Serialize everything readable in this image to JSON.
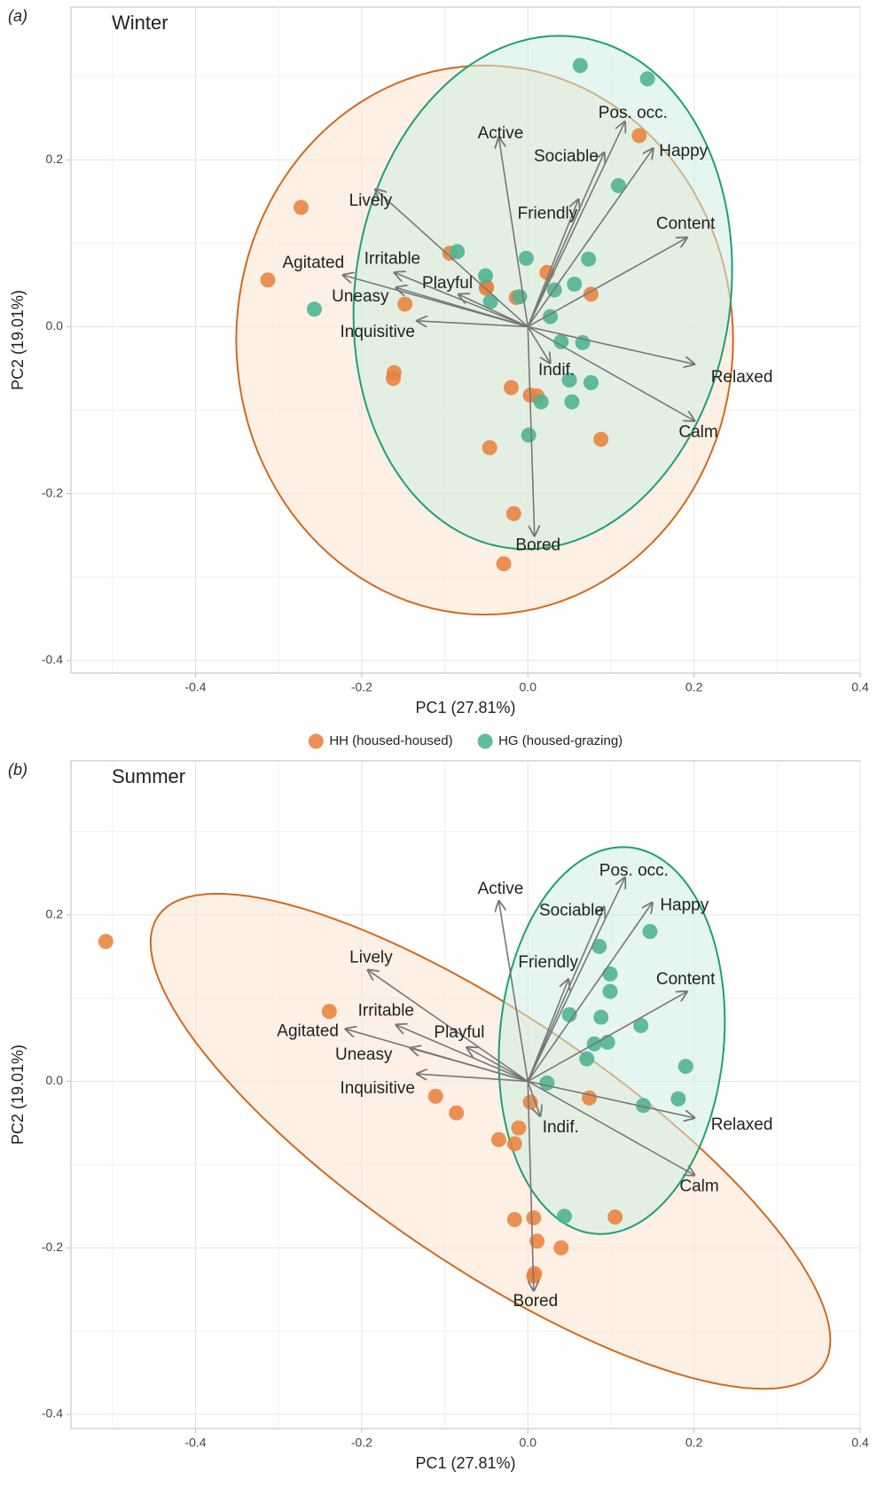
{
  "chart_data": [
    {
      "type": "scatter",
      "panel_label": "(a)",
      "title": "Winter",
      "xlabel": "PC1 (27.81%)",
      "ylabel": "PC2 (19.01%)",
      "xlim": [
        -0.55,
        0.4
      ],
      "ylim": [
        -0.415,
        0.383
      ],
      "xticks": [
        -0.4,
        -0.2,
        {
          "value": 0,
          "label": "0.0"
        },
        0.2,
        0.4
      ],
      "yticks": [
        -0.4,
        -0.2,
        {
          "value": 0,
          "label": "0.0"
        },
        0.2
      ],
      "grid": true,
      "legend": "bottom",
      "series": [
        {
          "name": "HH (housed-housed)",
          "color": "#e8823e",
          "x": [
            -0.273,
            -0.313,
            -0.148,
            -0.161,
            -0.162,
            -0.094,
            -0.05,
            -0.05,
            -0.014,
            0.023,
            0.076,
            0.134,
            -0.02,
            0.003,
            0.011,
            -0.046,
            0.088,
            -0.017,
            -0.029
          ],
          "values": [
            0.143,
            0.056,
            0.027,
            -0.055,
            -0.062,
            0.088,
            0.048,
            0.046,
            0.035,
            0.065,
            0.039,
            0.229,
            -0.073,
            -0.082,
            -0.083,
            -0.145,
            -0.135,
            -0.224,
            -0.284
          ],
          "ellipse": {
            "cx": -0.052,
            "cy": -0.016,
            "rx": 0.299,
            "ry": 0.329,
            "angle": 0,
            "stroke": "#d06a1e",
            "fill": "#fde4d0"
          }
        },
        {
          "name": "HG (housed-grazing)",
          "color": "#4cb391",
          "x": [
            0.063,
            0.144,
            0.109,
            -0.085,
            -0.051,
            -0.045,
            -0.01,
            -0.002,
            0.032,
            0.056,
            0.073,
            0.027,
            0.04,
            0.066,
            0.05,
            0.076,
            0.053,
            0.016,
            0.001,
            -0.257
          ],
          "values": [
            0.313,
            0.297,
            0.169,
            0.09,
            0.061,
            0.03,
            0.036,
            0.082,
            0.044,
            0.051,
            0.081,
            0.012,
            -0.018,
            -0.019,
            -0.064,
            -0.067,
            -0.09,
            -0.09,
            -0.13,
            0.021
          ],
          "ellipse": {
            "cx": 0.018,
            "cy": 0.041,
            "rx": 0.226,
            "ry": 0.309,
            "angle": -8,
            "stroke": "#1f9e78",
            "fill": "#cdeee2"
          }
        }
      ],
      "vectors": [
        {
          "name": "Active",
          "x": -0.035,
          "y": 0.227
        },
        {
          "name": "Pos. occ.",
          "x": 0.117,
          "y": 0.246
        },
        {
          "name": "Happy",
          "x": 0.151,
          "y": 0.214
        },
        {
          "name": "Sociable",
          "x": 0.092,
          "y": 0.209
        },
        {
          "name": "Friendly",
          "x": 0.061,
          "y": 0.153
        },
        {
          "name": "Content",
          "x": 0.192,
          "y": 0.107
        },
        {
          "name": "Lively",
          "x": -0.184,
          "y": 0.165
        },
        {
          "name": "Agitated",
          "x": -0.223,
          "y": 0.062
        },
        {
          "name": "Irritable",
          "x": -0.161,
          "y": 0.065
        },
        {
          "name": "Playful",
          "x": -0.084,
          "y": 0.039
        },
        {
          "name": "Uneasy",
          "x": -0.159,
          "y": 0.047
        },
        {
          "name": "Inquisitive",
          "x": -0.134,
          "y": 0.007
        },
        {
          "name": "Indif.",
          "x": 0.027,
          "y": -0.044
        },
        {
          "name": "Relaxed",
          "x": 0.201,
          "y": -0.045
        },
        {
          "name": "Calm",
          "x": 0.201,
          "y": -0.113
        },
        {
          "name": "Bored",
          "x": 0.008,
          "y": -0.251
        }
      ]
    },
    {
      "type": "scatter",
      "panel_label": "(b)",
      "title": "Summer",
      "xlabel": "PC1 (27.81%)",
      "ylabel": "PC2 (19.01%)",
      "xlim": [
        -0.55,
        0.4
      ],
      "ylim": [
        -0.417,
        0.385
      ],
      "xticks": [
        -0.4,
        -0.2,
        {
          "value": 0,
          "label": "0.0"
        },
        0.2,
        0.4
      ],
      "yticks": [
        -0.4,
        -0.2,
        {
          "value": 0,
          "label": "0.0"
        },
        0.2
      ],
      "grid": true,
      "series": [
        {
          "color": "#e8823e",
          "x": [
            -0.508,
            -0.239,
            -0.111,
            -0.086,
            -0.035,
            -0.016,
            -0.011,
            0.003,
            0.074,
            -0.016,
            0.007,
            0.011,
            0.008,
            0.007,
            0.04,
            0.105
          ],
          "values": [
            0.168,
            0.084,
            -0.018,
            -0.038,
            -0.07,
            -0.075,
            -0.056,
            -0.025,
            -0.02,
            -0.166,
            -0.164,
            -0.192,
            -0.231,
            -0.234,
            -0.2,
            -0.163
          ],
          "ellipse": {
            "cx": -0.045,
            "cy": -0.072,
            "rx": 0.483,
            "ry": 0.15,
            "angle": -34,
            "stroke": "#d06a1e",
            "fill": "#fde4d0"
          }
        },
        {
          "color": "#4cb391",
          "x": [
            0.147,
            0.086,
            0.099,
            0.099,
            0.05,
            0.088,
            0.136,
            0.08,
            0.096,
            0.071,
            0.023,
            0.19,
            0.181,
            0.139,
            0.044
          ],
          "values": [
            0.18,
            0.162,
            0.129,
            0.108,
            0.08,
            0.077,
            0.067,
            0.045,
            0.047,
            0.027,
            -0.002,
            0.018,
            -0.021,
            -0.029,
            -0.162
          ],
          "ellipse": {
            "cx": 0.101,
            "cy": 0.049,
            "rx": 0.135,
            "ry": 0.233,
            "angle": -5,
            "stroke": "#1f9e78",
            "fill": "#cdeee2"
          }
        }
      ],
      "vectors": [
        {
          "name": "Active",
          "x": -0.035,
          "y": 0.217
        },
        {
          "name": "Pos. occ.",
          "x": 0.117,
          "y": 0.245
        },
        {
          "name": "Happy",
          "x": 0.15,
          "y": 0.215
        },
        {
          "name": "Sociable",
          "x": 0.092,
          "y": 0.21
        },
        {
          "name": "Friendly",
          "x": 0.049,
          "y": 0.123
        },
        {
          "name": "Content",
          "x": 0.192,
          "y": 0.108
        },
        {
          "name": "Lively",
          "x": -0.193,
          "y": 0.134
        },
        {
          "name": "Agitated",
          "x": -0.22,
          "y": 0.063
        },
        {
          "name": "Irritable",
          "x": -0.159,
          "y": 0.068
        },
        {
          "name": "Playful",
          "x": -0.074,
          "y": 0.041
        },
        {
          "name": "Uneasy",
          "x": -0.142,
          "y": 0.04
        },
        {
          "name": "Inquisitive",
          "x": -0.134,
          "y": 0.009
        },
        {
          "name": "Indif.",
          "x": 0.015,
          "y": -0.042
        },
        {
          "name": "Relaxed",
          "x": 0.201,
          "y": -0.044
        },
        {
          "name": "Calm",
          "x": 0.201,
          "y": -0.113
        },
        {
          "name": "Bored",
          "x": 0.007,
          "y": -0.252
        }
      ]
    }
  ]
}
